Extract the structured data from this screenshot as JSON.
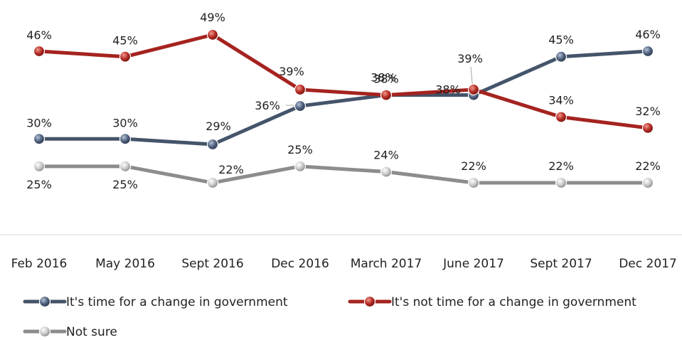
{
  "chart_data": {
    "type": "line",
    "title": "",
    "xlabel": "",
    "ylabel": "",
    "ylim": [
      0,
      55
    ],
    "grid": false,
    "legend_position": "bottom",
    "categories": [
      "Feb 2016",
      "May 2016",
      "Sept 2016",
      "Dec 2016",
      "March 2017",
      "June 2017",
      "Sept 2017",
      "Dec 2017"
    ],
    "series": [
      {
        "name": "It's time for a change in government",
        "color": "#44546a",
        "values": [
          30,
          30,
          29,
          36,
          38,
          38,
          45,
          46
        ],
        "labels": [
          "30%",
          "30%",
          "29%",
          "36%",
          "38%",
          "38%",
          "45%",
          "46%"
        ]
      },
      {
        "name": "It's not time for a change in government",
        "color": "#a5231f",
        "values": [
          46,
          45,
          49,
          39,
          38,
          39,
          34,
          32
        ],
        "labels": [
          "46%",
          "45%",
          "49%",
          "39%",
          "38%",
          "39%",
          "34%",
          "32%"
        ]
      },
      {
        "name": "Not sure",
        "color": "#8c8c8c",
        "values": [
          25,
          25,
          22,
          25,
          24,
          22,
          22,
          22
        ],
        "labels": [
          "25%",
          "25%",
          "22%",
          "25%",
          "24%",
          "22%",
          "22%",
          "22%"
        ]
      }
    ]
  }
}
